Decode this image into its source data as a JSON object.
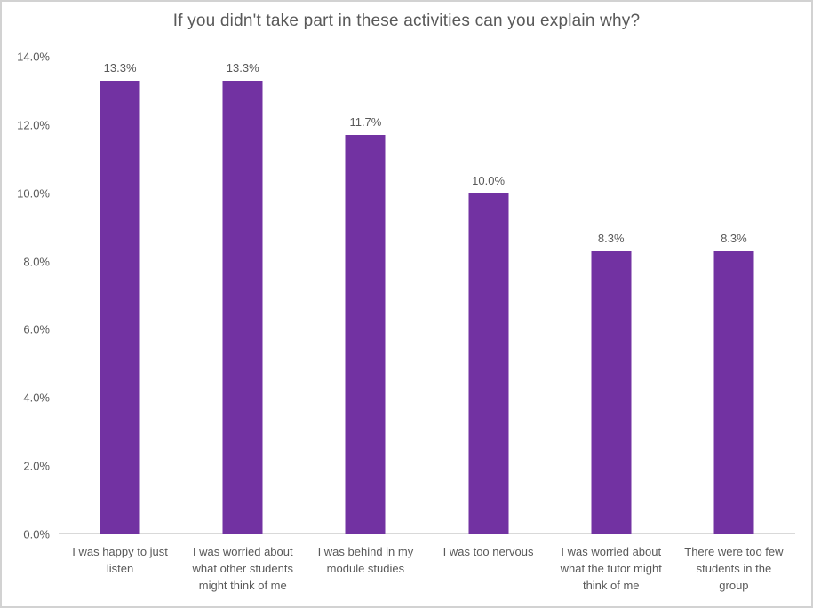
{
  "chart_data": {
    "type": "bar",
    "title": "If you didn't take part in these activities can you explain why?",
    "categories": [
      "I was happy to just listen",
      "I was worried about what other students might think of me",
      "I was behind in my module studies",
      "I was too nervous",
      "I was worried about what the tutor might think of me",
      "There were too few students in the group"
    ],
    "values": [
      13.3,
      13.3,
      11.7,
      10.0,
      8.3,
      8.3
    ],
    "value_labels": [
      "13.3%",
      "13.3%",
      "11.7%",
      "10.0%",
      "8.3%",
      "8.3%"
    ],
    "xlabel": "",
    "ylabel": "",
    "ylim": [
      0,
      14
    ],
    "y_tick_values": [
      0,
      2,
      4,
      6,
      8,
      10,
      12,
      14
    ],
    "y_tick_labels": [
      "0.0%",
      "2.0%",
      "4.0%",
      "6.0%",
      "8.0%",
      "10.0%",
      "12.0%",
      "14.0%"
    ],
    "grid": false,
    "legend_position": "none",
    "bar_color": "#7232A2",
    "text_color": "#595959",
    "axis_line_color": "#D9D9D9",
    "border_color": "#D2D2D2"
  }
}
